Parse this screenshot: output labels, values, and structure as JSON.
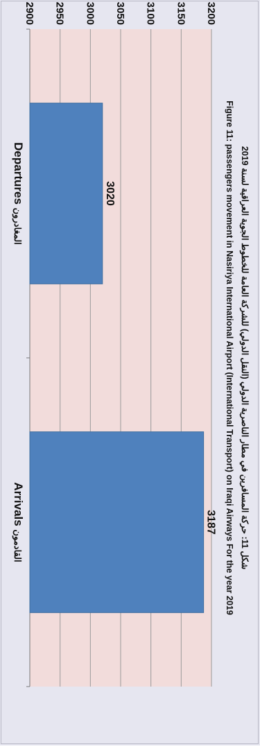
{
  "chart_data": {
    "type": "bar",
    "orientation": "vertical",
    "rotated": "90deg-clockwise",
    "title_line1": "شكل 11: حركة المسافرين في مطار الناصرية الدولي (النقل الدولي) للشركة العامة للخطوط الجوية العراقية لسنة 2019",
    "title_line2": "Figure 11: passengers movement in Nasiriya International Airport (International Transport) on Iraqi Airways For the year 2019",
    "categories": [
      {
        "en": "Departures",
        "ar": "المغادرون"
      },
      {
        "en": "Arrivals",
        "ar": "القادمون"
      }
    ],
    "values": [
      3020,
      3187
    ],
    "data_labels": [
      "3020",
      "3187"
    ],
    "ylim": [
      2900,
      3200
    ],
    "yticks": [
      "2900",
      "2950",
      "3000",
      "3050",
      "3100",
      "3150",
      "3200"
    ],
    "grid": true,
    "legend": "none",
    "colors": {
      "bar": "#4f81bd",
      "plot_bg": "#f2dcdb",
      "outer_bg": "#e6e6f0",
      "grid": "#9a9a9a"
    }
  }
}
